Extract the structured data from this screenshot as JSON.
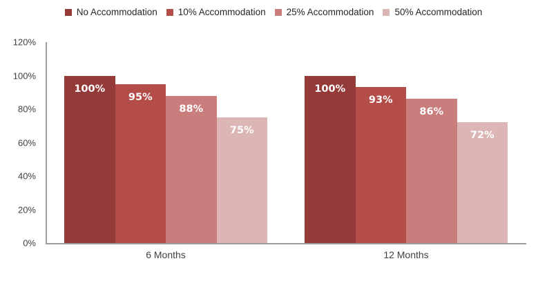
{
  "chart_data": {
    "type": "bar",
    "title": "",
    "xlabel": "",
    "ylabel": "",
    "categories": [
      "6 Months",
      "12 Months"
    ],
    "series": [
      {
        "name": "No Accommodation",
        "color": "#943b3a",
        "values": [
          100,
          100
        ]
      },
      {
        "name": "10% Accommodation",
        "color": "#b44c48",
        "values": [
          95,
          93
        ]
      },
      {
        "name": "25% Accommodation",
        "color": "#c97e7d",
        "values": [
          88,
          86
        ]
      },
      {
        "name": "50% Accommodation",
        "color": "#dcb5b5",
        "values": [
          75,
          72
        ]
      }
    ],
    "value_label_suffix": "%",
    "ylim": [
      0,
      120
    ],
    "y_ticks": [
      0,
      20,
      40,
      60,
      80,
      100,
      120
    ],
    "y_tick_labels": [
      "0%",
      "20%",
      "40%",
      "60%",
      "80%",
      "100%",
      "120%"
    ],
    "legend_position": "top",
    "grid": false
  },
  "colors": {
    "background": "#ffffff",
    "axis_line": "#9c9c9c",
    "tick_label_text": "#3f3f3f",
    "legend_text": "#262626",
    "value_label_text": "#ffffff"
  }
}
